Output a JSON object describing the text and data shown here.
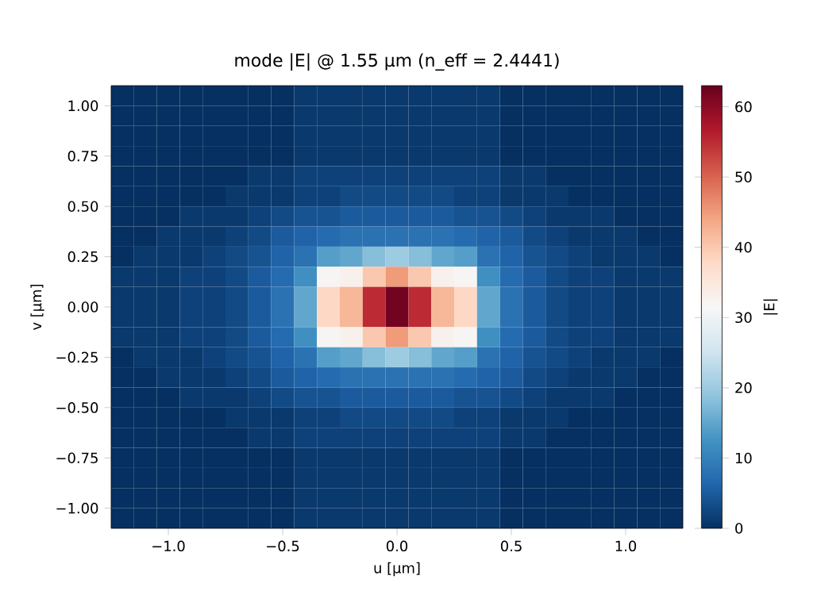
{
  "chart_data": {
    "type": "heatmap",
    "title": "mode |E| @ 1.55 µm  (n_eff = 2.4441)",
    "xlabel": "u [µm]",
    "ylabel": "v [µm]",
    "clabel": "|E|",
    "xlim": [
      -1.25,
      1.25
    ],
    "ylim": [
      -1.1,
      1.1
    ],
    "xticks": [
      {
        "value": -1.0,
        "label": "−1.0"
      },
      {
        "value": -0.5,
        "label": "−0.5"
      },
      {
        "value": 0,
        "label": "0.0"
      },
      {
        "value": 0.5,
        "label": "0.5"
      },
      {
        "value": 1.0,
        "label": "1.0"
      }
    ],
    "yticks": [
      {
        "value": -1.0,
        "label": "−1.00"
      },
      {
        "value": -0.75,
        "label": "−0.75"
      },
      {
        "value": -0.5,
        "label": "−0.50"
      },
      {
        "value": -0.25,
        "label": "−0.25"
      },
      {
        "value": 0,
        "label": "0.00"
      },
      {
        "value": 0.25,
        "label": "0.25"
      },
      {
        "value": 0.5,
        "label": "0.50"
      },
      {
        "value": 0.75,
        "label": "0.75"
      },
      {
        "value": 1.0,
        "label": "1.00"
      }
    ],
    "clim": [
      0,
      63
    ],
    "cticks": [
      0,
      10,
      20,
      30,
      40,
      50,
      60
    ],
    "x": [
      -1.2,
      -1.1,
      -1.0,
      -0.9,
      -0.8,
      -0.7,
      -0.6,
      -0.5,
      -0.4,
      -0.3,
      -0.2,
      -0.1,
      0,
      0.1,
      0.2,
      0.3,
      0.4,
      0.5,
      0.6,
      0.7,
      0.8,
      0.9,
      1.0,
      1.1,
      1.2
    ],
    "y": [
      1.05,
      0.95,
      0.85,
      0.75,
      0.65,
      0.55,
      0.45,
      0.35,
      0.25,
      0.15,
      0.05,
      -0.05,
      -0.15,
      -0.25,
      -0.35,
      -0.45,
      -0.55,
      -0.65,
      -0.75,
      -0.85,
      -0.95,
      -1.05
    ],
    "cells": [
      [
        0,
        0,
        0,
        0,
        0,
        0,
        0,
        0,
        1,
        1,
        1,
        1,
        1,
        1,
        1,
        1,
        1,
        0,
        0,
        0,
        0,
        0,
        0,
        0,
        0
      ],
      [
        0,
        0,
        0,
        0,
        0,
        0,
        0,
        0,
        1,
        1,
        1,
        1,
        1,
        1,
        1,
        1,
        1,
        0,
        0,
        0,
        0,
        0,
        0,
        0,
        0
      ],
      [
        0,
        0,
        0,
        0,
        0,
        0,
        0,
        0,
        1,
        1,
        1,
        1,
        1,
        1,
        1,
        1,
        1,
        0,
        0,
        0,
        0,
        0,
        0,
        0,
        0
      ],
      [
        0,
        0,
        0,
        0,
        0,
        0,
        0,
        0,
        1,
        1,
        1,
        1,
        1,
        1,
        1,
        1,
        1,
        0,
        0,
        0,
        0,
        0,
        0,
        0,
        0
      ],
      [
        0,
        0,
        0,
        0,
        0,
        0,
        1,
        1,
        2,
        2,
        2,
        2,
        2,
        2,
        2,
        2,
        2,
        1,
        1,
        0,
        0,
        0,
        0,
        0,
        0
      ],
      [
        0,
        0,
        0,
        0,
        0,
        1,
        1,
        1,
        2,
        2,
        3,
        3,
        3,
        3,
        3,
        2,
        2,
        1,
        1,
        1,
        0,
        0,
        0,
        0,
        0
      ],
      [
        0,
        0,
        0,
        1,
        1,
        1,
        2,
        3,
        4,
        4,
        5,
        5,
        5,
        5,
        5,
        4,
        4,
        3,
        2,
        1,
        1,
        1,
        0,
        0,
        0
      ],
      [
        0,
        0,
        1,
        1,
        1,
        2,
        3,
        5,
        6,
        7,
        8,
        8,
        8,
        8,
        8,
        7,
        6,
        5,
        3,
        2,
        1,
        1,
        1,
        0,
        0
      ],
      [
        0,
        1,
        1,
        1,
        2,
        3,
        4,
        6,
        8,
        14,
        15,
        18,
        20,
        18,
        15,
        14,
        8,
        6,
        4,
        3,
        2,
        1,
        1,
        1,
        0
      ],
      [
        1,
        1,
        1,
        2,
        2,
        3,
        5,
        7,
        12,
        32,
        33,
        40,
        45,
        40,
        33,
        32,
        12,
        7,
        5,
        3,
        2,
        2,
        1,
        1,
        1
      ],
      [
        1,
        1,
        1,
        2,
        2,
        3,
        5,
        8,
        15,
        38,
        42,
        55,
        62,
        55,
        42,
        38,
        15,
        8,
        5,
        3,
        2,
        2,
        1,
        1,
        1
      ],
      [
        1,
        1,
        1,
        2,
        2,
        3,
        5,
        8,
        15,
        38,
        42,
        55,
        62,
        55,
        42,
        38,
        15,
        8,
        5,
        3,
        2,
        2,
        1,
        1,
        1
      ],
      [
        1,
        1,
        1,
        2,
        2,
        3,
        5,
        7,
        12,
        32,
        33,
        40,
        45,
        40,
        33,
        32,
        12,
        7,
        5,
        3,
        2,
        2,
        1,
        1,
        1
      ],
      [
        0,
        1,
        1,
        1,
        2,
        3,
        4,
        6,
        8,
        14,
        15,
        18,
        20,
        18,
        15,
        14,
        8,
        6,
        4,
        3,
        2,
        1,
        1,
        1,
        0
      ],
      [
        0,
        0,
        1,
        1,
        1,
        2,
        3,
        5,
        6,
        7,
        8,
        8,
        8,
        8,
        8,
        7,
        6,
        5,
        3,
        2,
        1,
        1,
        1,
        0,
        0
      ],
      [
        0,
        0,
        0,
        1,
        1,
        1,
        2,
        3,
        4,
        4,
        5,
        5,
        5,
        5,
        5,
        4,
        4,
        3,
        2,
        1,
        1,
        1,
        0,
        0,
        0
      ],
      [
        0,
        0,
        0,
        0,
        0,
        1,
        1,
        1,
        2,
        2,
        3,
        3,
        3,
        3,
        3,
        2,
        2,
        1,
        1,
        1,
        0,
        0,
        0,
        0,
        0
      ],
      [
        0,
        0,
        0,
        0,
        0,
        0,
        1,
        1,
        2,
        2,
        2,
        2,
        2,
        2,
        2,
        2,
        2,
        1,
        1,
        0,
        0,
        0,
        0,
        0,
        0
      ],
      [
        0,
        0,
        0,
        0,
        0,
        0,
        0,
        0,
        1,
        1,
        1,
        1,
        1,
        1,
        1,
        1,
        1,
        0,
        0,
        0,
        0,
        0,
        0,
        0,
        0
      ],
      [
        0,
        0,
        0,
        0,
        0,
        0,
        0,
        0,
        1,
        1,
        1,
        1,
        1,
        1,
        1,
        1,
        1,
        0,
        0,
        0,
        0,
        0,
        0,
        0,
        0
      ],
      [
        0,
        0,
        0,
        0,
        0,
        0,
        0,
        0,
        1,
        1,
        1,
        1,
        1,
        1,
        1,
        1,
        1,
        0,
        0,
        0,
        0,
        0,
        0,
        0,
        0
      ],
      [
        0,
        0,
        0,
        0,
        0,
        0,
        0,
        0,
        1,
        1,
        1,
        1,
        1,
        1,
        1,
        1,
        1,
        0,
        0,
        0,
        0,
        0,
        0,
        0,
        0
      ]
    ]
  }
}
